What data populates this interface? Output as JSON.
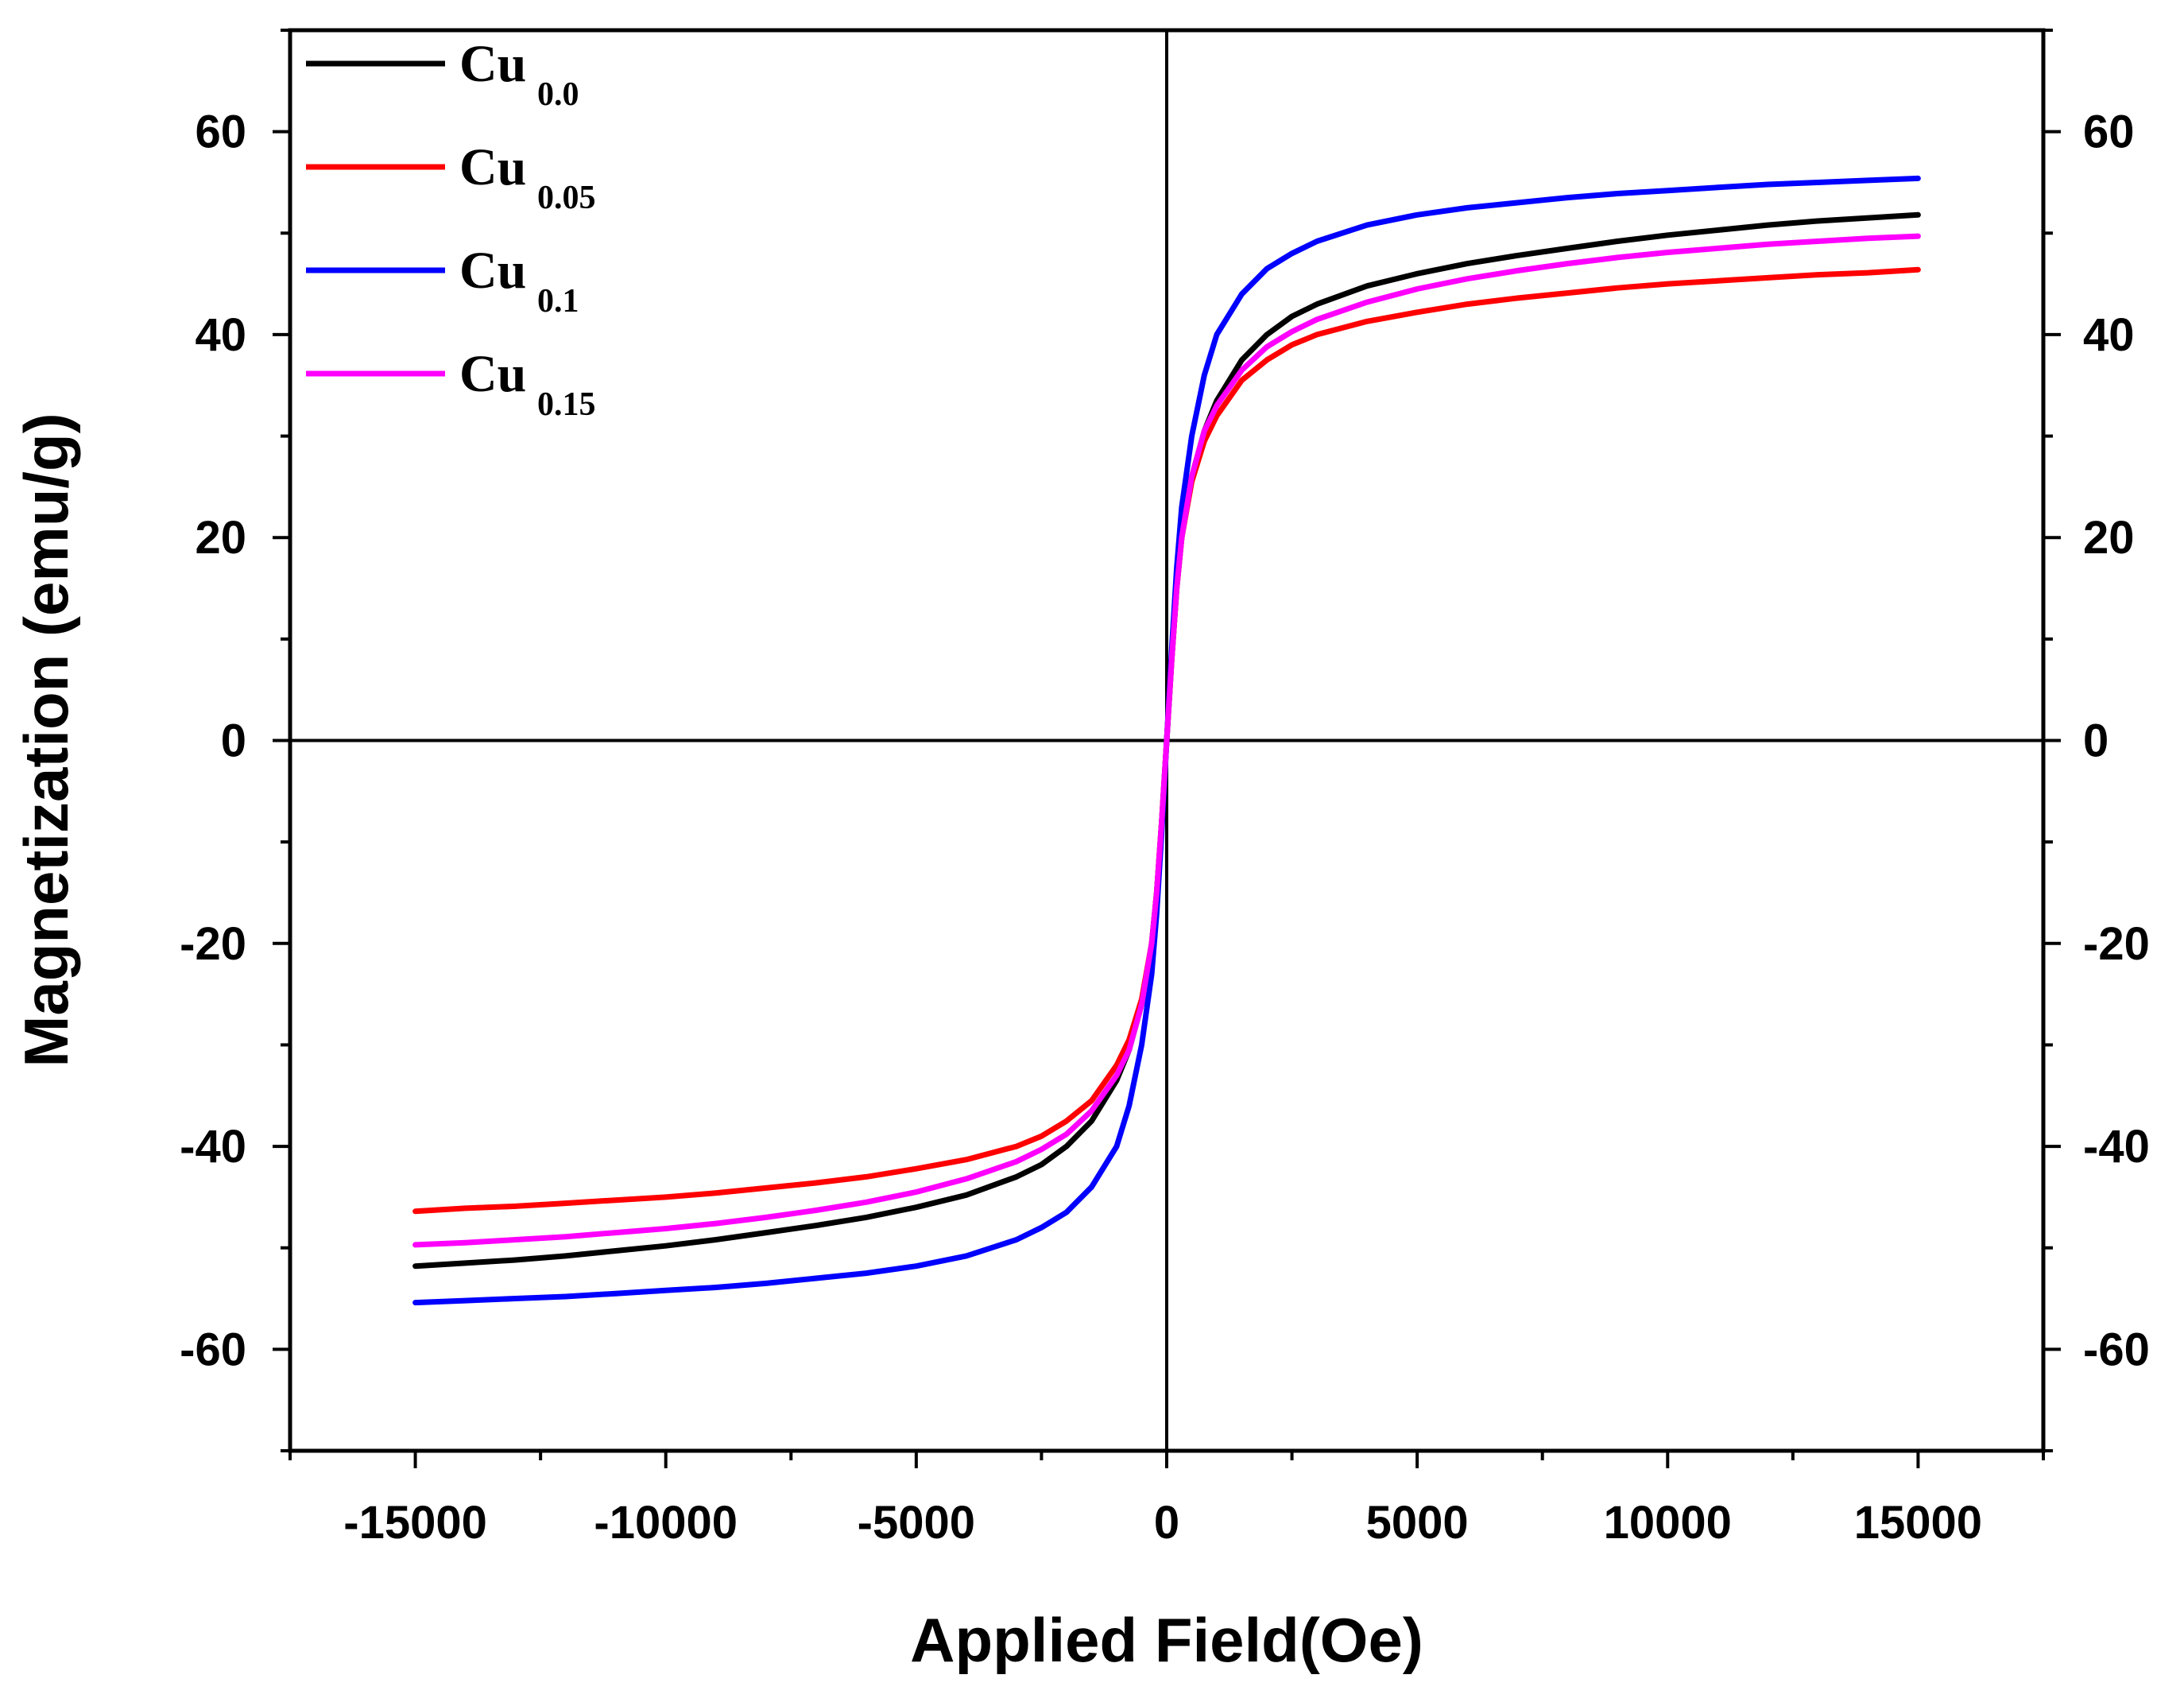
{
  "chart_data": {
    "type": "line",
    "title": "",
    "xlabel": "Applied Field(Oe)",
    "ylabel": "Magnetization (emu/g)",
    "xlim": [
      -17500,
      17500
    ],
    "ylim": [
      -70,
      70
    ],
    "xticks": [
      -15000,
      -10000,
      -5000,
      0,
      5000,
      10000,
      15000
    ],
    "yticks": [
      -60,
      -40,
      -20,
      0,
      20,
      40,
      60
    ],
    "y_right_axis": true,
    "zero_lines": true,
    "grid": false,
    "legend_position": "top-left",
    "x": [
      0,
      100,
      200,
      300,
      500,
      750,
      1000,
      1500,
      2000,
      2500,
      3000,
      4000,
      5000,
      6000,
      7000,
      8000,
      9000,
      10000,
      11000,
      12000,
      13000,
      14000,
      15000
    ],
    "series": [
      {
        "name_base": "Cu",
        "name_sub": "0.0",
        "color": "#000000",
        "values": [
          0,
          8,
          15,
          20,
          26,
          30.5,
          33.5,
          37.5,
          40,
          41.8,
          43,
          44.8,
          46,
          47,
          47.8,
          48.5,
          49.2,
          49.8,
          50.3,
          50.8,
          51.2,
          51.5,
          51.8
        ]
      },
      {
        "name_base": "Cu",
        "name_sub": "0.05",
        "color": "#ff0000",
        "values": [
          0,
          8,
          15,
          20,
          25.5,
          29.5,
          32,
          35.5,
          37.5,
          39,
          40,
          41.3,
          42.2,
          43,
          43.6,
          44.1,
          44.6,
          45,
          45.3,
          45.6,
          45.9,
          46.1,
          46.4
        ]
      },
      {
        "name_base": "Cu",
        "name_sub": "0.1",
        "color": "#0000ff",
        "values": [
          0,
          9,
          17,
          23,
          30,
          36,
          40,
          44,
          46.5,
          48,
          49.2,
          50.8,
          51.8,
          52.5,
          53,
          53.5,
          53.9,
          54.2,
          54.5,
          54.8,
          55,
          55.2,
          55.4
        ]
      },
      {
        "name_base": "Cu",
        "name_sub": "0.15",
        "color": "#ff00ff",
        "values": [
          0,
          8,
          15,
          20,
          26,
          30.5,
          33,
          36.5,
          38.8,
          40.3,
          41.5,
          43.2,
          44.5,
          45.5,
          46.3,
          47,
          47.6,
          48.1,
          48.5,
          48.9,
          49.2,
          49.5,
          49.7
        ]
      }
    ]
  }
}
